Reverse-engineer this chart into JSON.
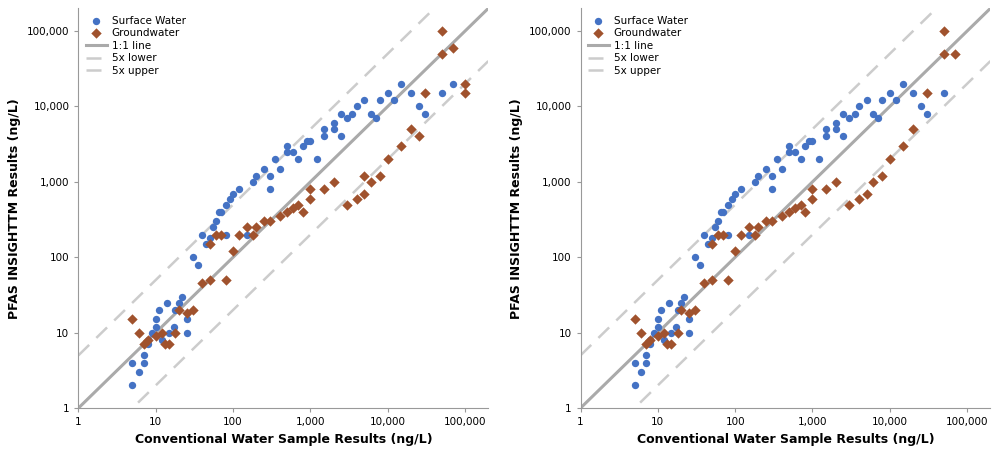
{
  "sw_x_left": [
    5,
    5,
    6,
    7,
    7,
    8,
    8,
    9,
    10,
    10,
    11,
    12,
    14,
    15,
    17,
    18,
    20,
    22,
    25,
    25,
    30,
    35,
    40,
    45,
    50,
    55,
    60,
    65,
    70,
    80,
    80,
    90,
    100,
    120,
    150,
    180,
    200,
    250,
    300,
    300,
    350,
    400,
    500,
    500,
    600,
    700,
    800,
    900,
    1000,
    1200,
    1500,
    1500,
    2000,
    2000,
    2500,
    2500,
    3000,
    3500,
    4000,
    5000,
    6000,
    7000,
    8000,
    10000,
    12000,
    15000,
    20000,
    25000,
    30000,
    50000,
    70000
  ],
  "sw_y_left": [
    2,
    4,
    3,
    4,
    5,
    7,
    8,
    10,
    12,
    15,
    20,
    8,
    25,
    10,
    12,
    20,
    25,
    30,
    10,
    15,
    100,
    80,
    200,
    150,
    180,
    250,
    300,
    400,
    400,
    500,
    200,
    600,
    700,
    800,
    200,
    1000,
    1200,
    1500,
    800,
    1200,
    2000,
    1500,
    3000,
    2500,
    2500,
    2000,
    3000,
    3500,
    3500,
    2000,
    4000,
    5000,
    5000,
    6000,
    4000,
    8000,
    7000,
    8000,
    10000,
    12000,
    8000,
    7000,
    12000,
    15000,
    12000,
    20000,
    15000,
    10000,
    8000,
    15000,
    20000
  ],
  "gw_x_left": [
    5,
    6,
    7,
    8,
    10,
    12,
    13,
    15,
    18,
    20,
    25,
    30,
    40,
    50,
    50,
    60,
    70,
    80,
    100,
    120,
    150,
    180,
    200,
    250,
    300,
    400,
    500,
    600,
    700,
    800,
    1000,
    1000,
    1500,
    2000,
    3000,
    4000,
    5000,
    5000,
    6000,
    8000,
    10000,
    15000,
    20000,
    25000,
    30000,
    50000,
    50000,
    70000,
    100000,
    100000
  ],
  "gw_y_left": [
    15,
    10,
    7,
    8,
    9,
    10,
    7,
    7,
    10,
    20,
    18,
    20,
    45,
    50,
    150,
    200,
    200,
    50,
    120,
    200,
    250,
    200,
    250,
    300,
    300,
    350,
    400,
    450,
    500,
    400,
    600,
    800,
    800,
    1000,
    500,
    600,
    700,
    1200,
    1000,
    1200,
    2000,
    3000,
    5000,
    4000,
    15000,
    100000,
    50000,
    60000,
    20000,
    15000
  ],
  "sw_x_right": [
    5,
    5,
    6,
    7,
    7,
    8,
    8,
    9,
    10,
    10,
    11,
    12,
    14,
    15,
    17,
    18,
    20,
    22,
    25,
    25,
    30,
    35,
    40,
    45,
    50,
    55,
    60,
    65,
    70,
    80,
    80,
    90,
    100,
    120,
    150,
    180,
    200,
    250,
    300,
    300,
    350,
    400,
    500,
    500,
    600,
    700,
    800,
    900,
    1000,
    1200,
    1500,
    1500,
    2000,
    2000,
    2500,
    2500,
    3000,
    3500,
    4000,
    5000,
    6000,
    7000,
    8000,
    10000,
    12000,
    15000,
    20000,
    25000,
    30000,
    50000
  ],
  "sw_y_right": [
    2,
    4,
    3,
    4,
    5,
    7,
    8,
    10,
    12,
    15,
    20,
    8,
    25,
    10,
    12,
    20,
    25,
    30,
    10,
    15,
    100,
    80,
    200,
    150,
    180,
    250,
    300,
    400,
    400,
    500,
    200,
    600,
    700,
    800,
    200,
    1000,
    1200,
    1500,
    800,
    1200,
    2000,
    1500,
    3000,
    2500,
    2500,
    2000,
    3000,
    3500,
    3500,
    2000,
    4000,
    5000,
    5000,
    6000,
    4000,
    8000,
    7000,
    8000,
    10000,
    12000,
    8000,
    7000,
    12000,
    15000,
    12000,
    20000,
    15000,
    10000,
    8000,
    15000
  ],
  "gw_x_right": [
    5,
    6,
    7,
    8,
    10,
    12,
    13,
    15,
    18,
    20,
    25,
    30,
    40,
    50,
    50,
    60,
    70,
    80,
    100,
    120,
    150,
    180,
    200,
    250,
    300,
    400,
    500,
    600,
    700,
    800,
    1000,
    1000,
    1500,
    2000,
    3000,
    4000,
    5000,
    6000,
    8000,
    10000,
    15000,
    20000,
    30000,
    50000,
    50000,
    70000
  ],
  "gw_y_right": [
    15,
    10,
    7,
    8,
    9,
    10,
    7,
    7,
    10,
    20,
    18,
    20,
    45,
    50,
    150,
    200,
    200,
    50,
    120,
    200,
    250,
    200,
    250,
    300,
    300,
    350,
    400,
    450,
    500,
    400,
    600,
    800,
    800,
    1000,
    500,
    600,
    700,
    1000,
    1200,
    2000,
    3000,
    5000,
    15000,
    100000,
    50000,
    50000
  ],
  "sw_color": "#4472C4",
  "gw_color": "#A0522D",
  "line_1to1_color": "#AAAAAA",
  "line_5x_color": "#CCCCCC",
  "xlabel": "Conventional Water Sample Results (ng/L)",
  "ylabel": "PFAS INSIGHTTM Results (ng/L)",
  "legend_sw": "Surface Water",
  "legend_gw": "Groundwater",
  "legend_1to1": "1:1 line",
  "legend_5x_lower": "5x lower",
  "legend_5x_upper": "5x upper",
  "xlim": [
    1,
    200000
  ],
  "ylim": [
    1,
    200000
  ],
  "xticks": [
    1,
    10,
    100,
    1000,
    10000,
    100000
  ],
  "xticklabels": [
    "1",
    "10",
    "100",
    "1,000",
    "10,000",
    "100,000"
  ],
  "yticks": [
    1,
    10,
    100,
    1000,
    10000,
    100000
  ],
  "yticklabels": [
    "1",
    "10",
    "100",
    "1,000",
    "10,000",
    "100,000"
  ],
  "background_color": "#FFFFFF"
}
